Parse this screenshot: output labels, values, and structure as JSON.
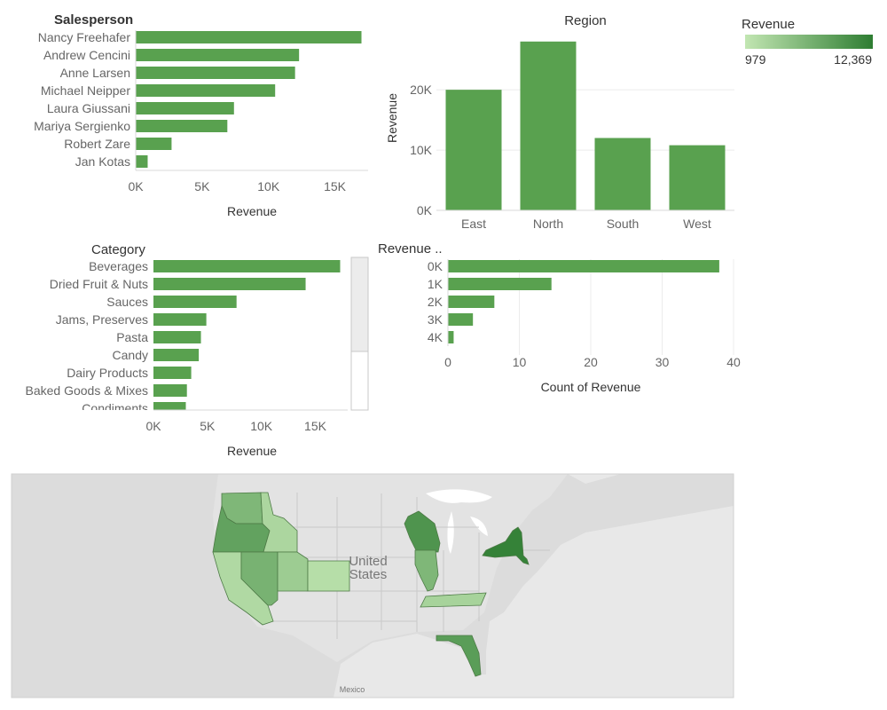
{
  "colors": {
    "bar": "#59a14f",
    "grid": "#ececec",
    "axis": "#d9d9d9",
    "legend_low": "#c2e6b2",
    "legend_high": "#2e7d32",
    "map_bg": "#e8e8e8",
    "map_land": "#dadada"
  },
  "legend": {
    "title": "Revenue",
    "min_label": "979",
    "max_label": "12,369"
  },
  "chart_data": [
    {
      "id": "salesperson",
      "type": "bar",
      "orientation": "horizontal",
      "title": "Salesperson",
      "xlabel": "Revenue",
      "categories": [
        "Nancy Freehafer",
        "Andrew Cencini",
        "Anne Larsen",
        "Michael Neipper",
        "Laura Giussani",
        "Mariya Sergienko",
        "Robert Zare",
        "Jan Kotas"
      ],
      "values": [
        17000,
        12300,
        12000,
        10500,
        7400,
        6900,
        2700,
        900
      ],
      "xlim": [
        0,
        17500
      ],
      "ticks": [
        0,
        5000,
        10000,
        15000
      ],
      "tick_labels": [
        "0K",
        "5K",
        "10K",
        "15K"
      ]
    },
    {
      "id": "region",
      "type": "bar",
      "orientation": "vertical",
      "title": "Region",
      "ylabel": "Revenue",
      "categories": [
        "East",
        "North",
        "South",
        "West"
      ],
      "values": [
        20000,
        28000,
        12000,
        10800
      ],
      "ylim": [
        0,
        29000
      ],
      "ticks": [
        0,
        10000,
        20000
      ],
      "tick_labels": [
        "0K",
        "10K",
        "20K"
      ],
      "grid": true
    },
    {
      "id": "category",
      "type": "bar",
      "orientation": "horizontal",
      "title": "Category",
      "xlabel": "Revenue",
      "categories": [
        "Beverages",
        "Dried Fruit & Nuts",
        "Sauces",
        "Jams, Preserves",
        "Pasta",
        "Candy",
        "Dairy Products",
        "Baked Goods & Mixes",
        "Condiments"
      ],
      "values": [
        17300,
        14100,
        7700,
        4900,
        4400,
        4200,
        3500,
        3100,
        3000
      ],
      "xlim": [
        0,
        18000
      ],
      "ticks": [
        0,
        5000,
        10000,
        15000
      ],
      "tick_labels": [
        "0K",
        "5K",
        "10K",
        "15K"
      ]
    },
    {
      "id": "revenue-histogram",
      "type": "bar",
      "orientation": "horizontal",
      "title": "Revenue ..",
      "xlabel": "Count of Revenue",
      "categories": [
        "0K",
        "1K",
        "2K",
        "3K",
        "4K"
      ],
      "values": [
        38,
        14.5,
        6.5,
        3.5,
        0.8
      ],
      "xlim": [
        0,
        40
      ],
      "ticks": [
        0,
        10,
        20,
        30,
        40
      ],
      "tick_labels": [
        "0",
        "10",
        "20",
        "30",
        "40"
      ],
      "grid": true
    }
  ],
  "map": {
    "labels": {
      "country": "United",
      "country2": "States",
      "southern": "Mexico"
    },
    "states": [
      {
        "name": "Washington",
        "level": 0.45
      },
      {
        "name": "Oregon",
        "level": 0.65
      },
      {
        "name": "Idaho",
        "level": 0.15
      },
      {
        "name": "California",
        "level": 0.12
      },
      {
        "name": "Nevada",
        "level": 0.5
      },
      {
        "name": "Utah",
        "level": 0.25
      },
      {
        "name": "Colorado",
        "level": 0.08
      },
      {
        "name": "Wisconsin",
        "level": 0.78
      },
      {
        "name": "Illinois",
        "level": 0.45
      },
      {
        "name": "Tennessee",
        "level": 0.18
      },
      {
        "name": "Florida",
        "level": 0.7
      },
      {
        "name": "New York",
        "level": 0.95
      }
    ]
  }
}
